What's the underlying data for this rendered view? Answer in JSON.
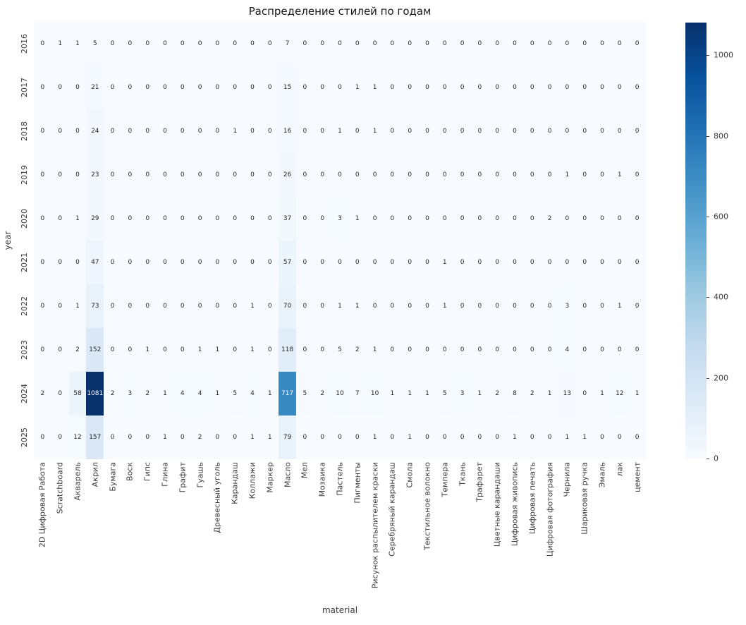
{
  "chart_data": {
    "type": "heatmap",
    "title": "Распределение стилей по годам",
    "xlabel": "material",
    "ylabel": "year",
    "rows": [
      "2016",
      "2017",
      "2018",
      "2019",
      "2020",
      "2021",
      "2022",
      "2023",
      "2024",
      "2025"
    ],
    "columns": [
      "2D Цифровая Работа",
      "Scratchboard",
      "Акварель",
      "Акрил",
      "Бумага",
      "Воск",
      "Гипс",
      "Глина",
      "Графит",
      "Гуашь",
      "Древесный уголь",
      "Карандаш",
      "Коллажи",
      "Маркер",
      "Масло",
      "Мел",
      "Мозаика",
      "Пастель",
      "Пигменты",
      "Рисунок распылителем краски",
      "Серебряный карандаш",
      "Смола",
      "Текстильное волокно",
      "Темпера",
      "Ткань",
      "Трафарет",
      "Цветные карандаши",
      "Цифровая живопись",
      "Цифровая печать",
      "Цифровая фотография",
      "Чернила",
      "Шариковая ручка",
      "Эмаль",
      "лак",
      "цемент"
    ],
    "values": [
      [
        0,
        1,
        1,
        5,
        0,
        0,
        0,
        0,
        0,
        0,
        0,
        0,
        0,
        0,
        7,
        0,
        0,
        0,
        0,
        0,
        0,
        0,
        0,
        0,
        0,
        0,
        0,
        0,
        0,
        0,
        0,
        0,
        0,
        0,
        0
      ],
      [
        0,
        0,
        0,
        21,
        0,
        0,
        0,
        0,
        0,
        0,
        0,
        0,
        0,
        0,
        15,
        0,
        0,
        0,
        1,
        1,
        0,
        0,
        0,
        0,
        0,
        0,
        0,
        0,
        0,
        0,
        0,
        0,
        0,
        0,
        0
      ],
      [
        0,
        0,
        0,
        24,
        0,
        0,
        0,
        0,
        0,
        0,
        0,
        1,
        0,
        0,
        16,
        0,
        0,
        1,
        0,
        1,
        0,
        0,
        0,
        0,
        0,
        0,
        0,
        0,
        0,
        0,
        0,
        0,
        0,
        0,
        0
      ],
      [
        0,
        0,
        0,
        23,
        0,
        0,
        0,
        0,
        0,
        0,
        0,
        0,
        0,
        0,
        26,
        0,
        0,
        0,
        0,
        0,
        0,
        0,
        0,
        0,
        0,
        0,
        0,
        0,
        0,
        0,
        1,
        0,
        0,
        1,
        0
      ],
      [
        0,
        0,
        1,
        29,
        0,
        0,
        0,
        0,
        0,
        0,
        0,
        0,
        0,
        0,
        37,
        0,
        0,
        3,
        1,
        0,
        0,
        0,
        0,
        0,
        0,
        0,
        0,
        0,
        0,
        2,
        0,
        0,
        0,
        0,
        0
      ],
      [
        0,
        0,
        0,
        47,
        0,
        0,
        0,
        0,
        0,
        0,
        0,
        0,
        0,
        0,
        57,
        0,
        0,
        0,
        0,
        0,
        0,
        0,
        0,
        1,
        0,
        0,
        0,
        0,
        0,
        0,
        0,
        0,
        0,
        0,
        0
      ],
      [
        0,
        0,
        1,
        73,
        0,
        0,
        0,
        0,
        0,
        0,
        0,
        0,
        1,
        0,
        70,
        0,
        0,
        1,
        1,
        0,
        0,
        0,
        0,
        1,
        0,
        0,
        0,
        0,
        0,
        0,
        3,
        0,
        0,
        1,
        0
      ],
      [
        0,
        0,
        2,
        152,
        0,
        0,
        1,
        0,
        0,
        1,
        1,
        0,
        1,
        0,
        118,
        0,
        0,
        5,
        2,
        1,
        0,
        0,
        0,
        0,
        0,
        0,
        0,
        0,
        0,
        0,
        4,
        0,
        0,
        0,
        0
      ],
      [
        2,
        0,
        58,
        1081,
        2,
        3,
        2,
        1,
        4,
        4,
        1,
        5,
        4,
        1,
        717,
        5,
        2,
        10,
        7,
        10,
        1,
        1,
        1,
        5,
        3,
        1,
        2,
        8,
        2,
        1,
        13,
        0,
        1,
        12,
        1
      ],
      [
        0,
        0,
        12,
        157,
        0,
        0,
        0,
        1,
        0,
        2,
        0,
        0,
        1,
        1,
        79,
        0,
        0,
        0,
        0,
        1,
        0,
        1,
        0,
        0,
        0,
        0,
        0,
        1,
        0,
        0,
        1,
        1,
        0,
        0,
        0
      ]
    ],
    "vmin": 0,
    "vmax": 1081,
    "annotated": true,
    "colormap": "Blues",
    "colormap_stops": [
      "#f7fbff",
      "#deebf7",
      "#c6dbef",
      "#9ecae1",
      "#6baed6",
      "#4292c6",
      "#2171b5",
      "#08519c",
      "#08306b"
    ],
    "annotation_dark_text_color": "#262626",
    "annotation_light_text_color": "#ffffff",
    "colorbar_ticks": [
      0,
      200,
      400,
      600,
      800,
      1000
    ],
    "legend_position": "right-colorbar",
    "grid": false
  }
}
